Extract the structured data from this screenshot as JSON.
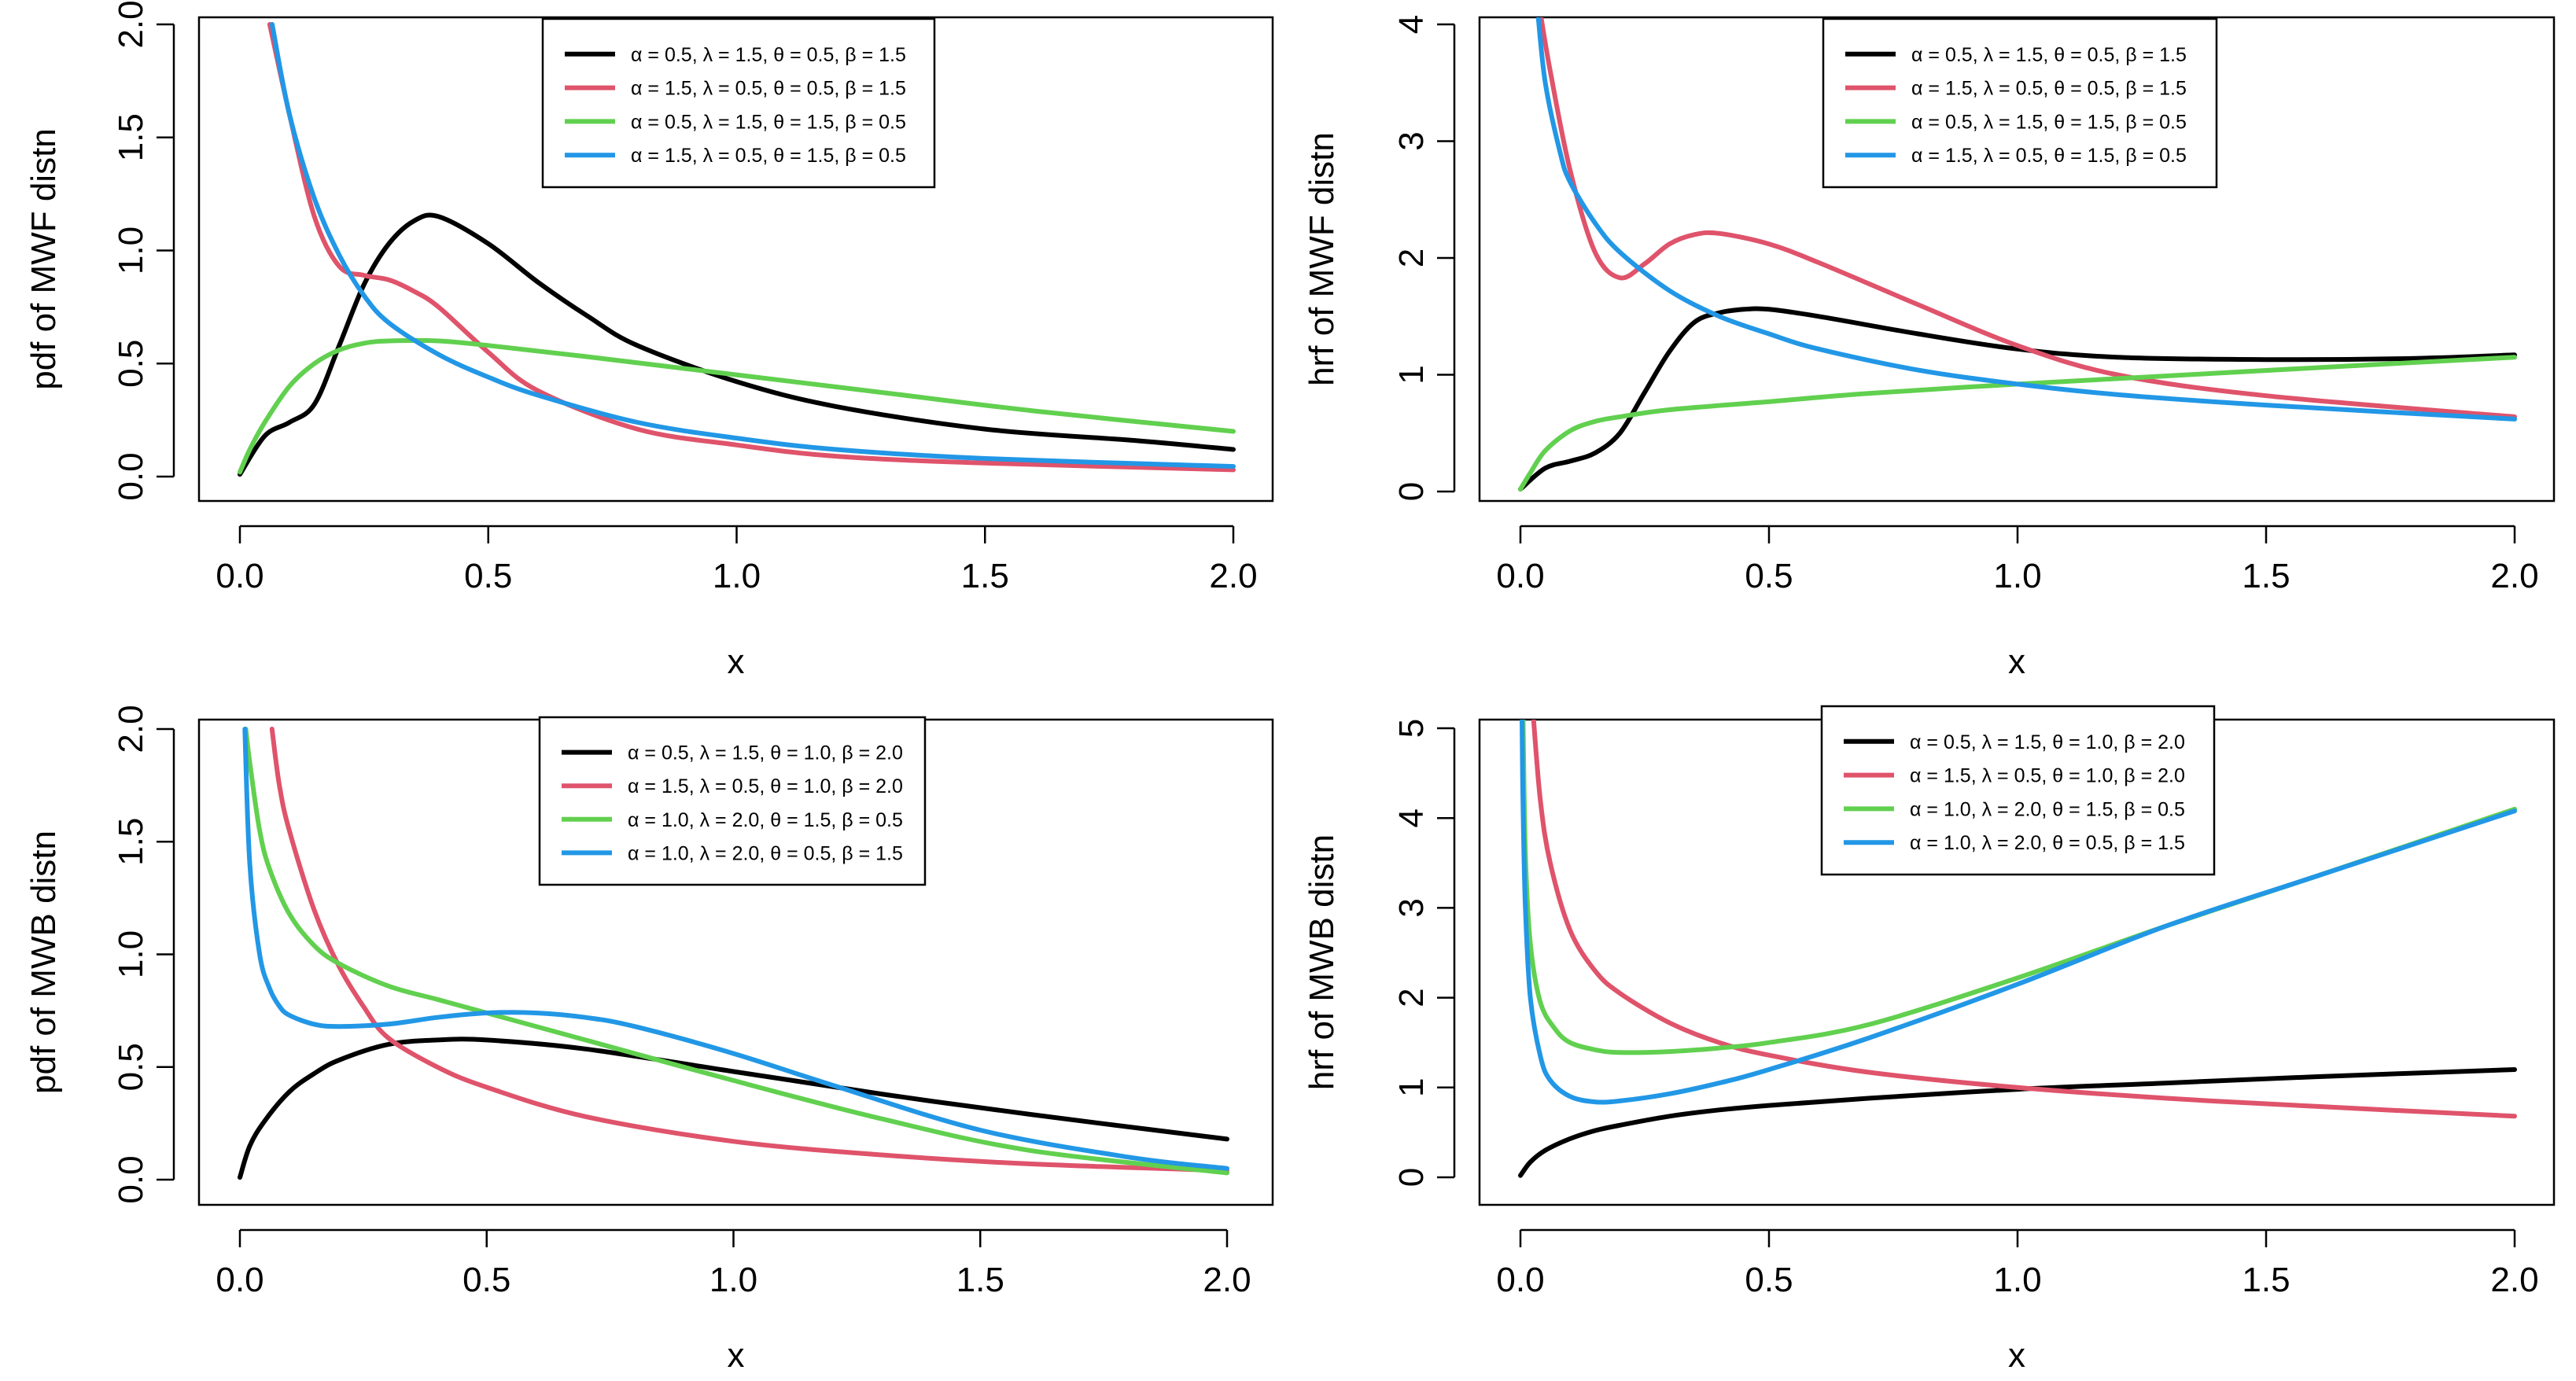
{
  "chart_data": [
    {
      "type": "line",
      "xlabel": "x",
      "ylabel": "pdf of MWF distn",
      "xlim": [
        0,
        2
      ],
      "ylim": [
        0,
        2
      ],
      "xticks": [
        "0.0",
        "0.5",
        "1.0",
        "1.5",
        "2.0"
      ],
      "yticks": [
        "0.0",
        "0.5",
        "1.0",
        "1.5",
        "2.0"
      ],
      "legend_position": "top-center",
      "series": [
        {
          "name": "α = 0.5, λ = 1.5, θ = 0.5, β = 1.5",
          "color": "#000000",
          "x": [
            0,
            0.05,
            0.1,
            0.15,
            0.2,
            0.25,
            0.3,
            0.35,
            0.4,
            0.5,
            0.6,
            0.7,
            0.8,
            1.0,
            1.2,
            1.5,
            1.8,
            2.0
          ],
          "y": [
            0.01,
            0.18,
            0.24,
            0.32,
            0.58,
            0.85,
            1.03,
            1.13,
            1.15,
            1.03,
            0.86,
            0.71,
            0.58,
            0.42,
            0.31,
            0.21,
            0.16,
            0.12
          ]
        },
        {
          "name": "α = 1.5, λ = 0.5, θ = 0.5, β = 1.5",
          "color": "#DF536B",
          "x": [
            0.06,
            0.1,
            0.15,
            0.2,
            0.25,
            0.3,
            0.35,
            0.4,
            0.5,
            0.6,
            0.8,
            1.0,
            1.2,
            1.5,
            2.0
          ],
          "y": [
            2.0,
            1.6,
            1.15,
            0.93,
            0.89,
            0.87,
            0.82,
            0.75,
            0.55,
            0.38,
            0.21,
            0.14,
            0.09,
            0.06,
            0.03
          ]
        },
        {
          "name": "α = 0.5, λ = 1.5, θ = 1.5, β = 0.5",
          "color": "#61D04F",
          "x": [
            0,
            0.02,
            0.05,
            0.1,
            0.15,
            0.2,
            0.25,
            0.3,
            0.4,
            0.5,
            0.7,
            1.0,
            1.3,
            1.6,
            2.0
          ],
          "y": [
            0.02,
            0.12,
            0.24,
            0.4,
            0.5,
            0.56,
            0.59,
            0.6,
            0.6,
            0.58,
            0.53,
            0.45,
            0.37,
            0.29,
            0.2
          ]
        },
        {
          "name": "α = 1.5, λ = 0.5, θ = 1.5, β = 0.5",
          "color": "#2297E6",
          "x": [
            0.065,
            0.1,
            0.15,
            0.2,
            0.25,
            0.3,
            0.4,
            0.5,
            0.6,
            0.8,
            1.0,
            1.2,
            1.5,
            2.0
          ],
          "y": [
            2.0,
            1.6,
            1.23,
            0.98,
            0.8,
            0.68,
            0.54,
            0.44,
            0.36,
            0.24,
            0.17,
            0.12,
            0.08,
            0.045
          ]
        }
      ]
    },
    {
      "type": "line",
      "xlabel": "x",
      "ylabel": "hrf of MWF distn",
      "xlim": [
        0,
        2
      ],
      "ylim": [
        0,
        4
      ],
      "xticks": [
        "0.0",
        "0.5",
        "1.0",
        "1.5",
        "2.0"
      ],
      "yticks": [
        "0",
        "1",
        "2",
        "3",
        "4"
      ],
      "legend_position": "top-center",
      "series": [
        {
          "name": "α = 0.5, λ = 1.5, θ = 0.5, β = 1.5",
          "color": "#000000",
          "x": [
            0,
            0.05,
            0.1,
            0.15,
            0.2,
            0.25,
            0.3,
            0.35,
            0.4,
            0.45,
            0.5,
            0.6,
            0.8,
            1.0,
            1.2,
            1.5,
            1.8,
            2.0
          ],
          "y": [
            0.02,
            0.2,
            0.26,
            0.33,
            0.5,
            0.85,
            1.2,
            1.45,
            1.53,
            1.56,
            1.56,
            1.5,
            1.35,
            1.22,
            1.15,
            1.13,
            1.14,
            1.17
          ]
        },
        {
          "name": "α = 1.5, λ = 0.5, θ = 0.5, β = 1.5",
          "color": "#DF536B",
          "x": [
            0.04,
            0.06,
            0.1,
            0.15,
            0.2,
            0.25,
            0.3,
            0.35,
            0.4,
            0.5,
            0.6,
            0.8,
            1.0,
            1.2,
            1.5,
            2.0
          ],
          "y": [
            4.1,
            3.6,
            2.75,
            2.05,
            1.83,
            1.95,
            2.12,
            2.2,
            2.21,
            2.12,
            1.96,
            1.6,
            1.25,
            1.0,
            0.82,
            0.64
          ]
        },
        {
          "name": "α = 0.5, λ = 1.5, θ = 1.5, β = 0.5",
          "color": "#61D04F",
          "x": [
            0,
            0.02,
            0.05,
            0.1,
            0.15,
            0.2,
            0.3,
            0.5,
            0.7,
            1.0,
            1.3,
            1.6,
            2.0
          ],
          "y": [
            0.02,
            0.16,
            0.35,
            0.52,
            0.6,
            0.64,
            0.7,
            0.77,
            0.84,
            0.92,
            0.99,
            1.06,
            1.15
          ]
        },
        {
          "name": "α = 1.5, λ = 0.5, θ = 1.5, β = 0.5",
          "color": "#2297E6",
          "x": [
            0.035,
            0.05,
            0.08,
            0.1,
            0.15,
            0.2,
            0.3,
            0.4,
            0.5,
            0.6,
            0.8,
            1.0,
            1.2,
            1.5,
            2.0
          ],
          "y": [
            4.1,
            3.5,
            2.9,
            2.65,
            2.3,
            2.05,
            1.72,
            1.5,
            1.35,
            1.22,
            1.04,
            0.92,
            0.83,
            0.74,
            0.62
          ]
        }
      ]
    },
    {
      "type": "line",
      "xlabel": "x",
      "ylabel": "pdf of MWB distn",
      "xlim": [
        0,
        2
      ],
      "ylim": [
        0,
        2
      ],
      "xticks": [
        "0.0",
        "0.5",
        "1.0",
        "1.5",
        "2.0"
      ],
      "yticks": [
        "0.0",
        "0.5",
        "1.0",
        "1.5",
        "2.0"
      ],
      "legend_position": "top-center",
      "series": [
        {
          "name": "α = 0.5, λ = 1.5, θ = 1.0, β = 2.0",
          "color": "#000000",
          "x": [
            0,
            0.02,
            0.05,
            0.1,
            0.15,
            0.2,
            0.3,
            0.4,
            0.5,
            0.7,
            1.0,
            1.3,
            1.6,
            2.0
          ],
          "y": [
            0.01,
            0.15,
            0.26,
            0.39,
            0.47,
            0.53,
            0.6,
            0.62,
            0.62,
            0.58,
            0.48,
            0.38,
            0.29,
            0.18
          ]
        },
        {
          "name": "α = 1.5, λ = 0.5, θ = 1.0, β = 2.0",
          "color": "#DF536B",
          "x": [
            0.065,
            0.08,
            0.1,
            0.15,
            0.2,
            0.25,
            0.3,
            0.4,
            0.5,
            0.7,
            1.0,
            1.3,
            1.6,
            2.0
          ],
          "y": [
            2.0,
            1.75,
            1.55,
            1.2,
            0.95,
            0.77,
            0.63,
            0.5,
            0.41,
            0.28,
            0.17,
            0.11,
            0.07,
            0.04
          ]
        },
        {
          "name": "α = 1.0, λ = 2.0, θ = 1.5, β = 0.5",
          "color": "#61D04F",
          "x": [
            0.012,
            0.02,
            0.04,
            0.06,
            0.1,
            0.15,
            0.2,
            0.3,
            0.4,
            0.5,
            0.7,
            1.0,
            1.3,
            1.6,
            2.0
          ],
          "y": [
            2.0,
            1.85,
            1.55,
            1.38,
            1.18,
            1.04,
            0.96,
            0.86,
            0.8,
            0.74,
            0.62,
            0.44,
            0.27,
            0.13,
            0.03
          ]
        },
        {
          "name": "α = 1.0, λ = 2.0, θ = 0.5, β = 1.5",
          "color": "#2297E6",
          "x": [
            0.01,
            0.02,
            0.04,
            0.06,
            0.08,
            0.1,
            0.15,
            0.2,
            0.3,
            0.4,
            0.5,
            0.6,
            0.7,
            0.8,
            1.0,
            1.2,
            1.5,
            1.8,
            2.0
          ],
          "y": [
            2.0,
            1.4,
            1.0,
            0.85,
            0.77,
            0.73,
            0.69,
            0.68,
            0.69,
            0.72,
            0.74,
            0.74,
            0.72,
            0.68,
            0.56,
            0.42,
            0.22,
            0.1,
            0.05
          ]
        }
      ]
    },
    {
      "type": "line",
      "xlabel": "x",
      "ylabel": "hrf of MWB distn",
      "xlim": [
        0,
        2
      ],
      "ylim": [
        0,
        5
      ],
      "xticks": [
        "0.0",
        "0.5",
        "1.0",
        "1.5",
        "2.0"
      ],
      "yticks": [
        "0",
        "1",
        "2",
        "3",
        "4",
        "5"
      ],
      "legend_position": "top-center",
      "series": [
        {
          "name": "α = 0.5, λ = 1.5, θ = 1.0, β = 2.0",
          "color": "#000000",
          "x": [
            0,
            0.02,
            0.05,
            0.1,
            0.15,
            0.2,
            0.3,
            0.4,
            0.5,
            0.7,
            1.0,
            1.3,
            1.6,
            2.0
          ],
          "y": [
            0.02,
            0.17,
            0.3,
            0.43,
            0.52,
            0.58,
            0.68,
            0.75,
            0.8,
            0.88,
            0.98,
            1.05,
            1.12,
            1.2
          ]
        },
        {
          "name": "α = 1.5, λ = 0.5, θ = 1.0, β = 2.0",
          "color": "#DF536B",
          "x": [
            0.025,
            0.04,
            0.06,
            0.1,
            0.15,
            0.2,
            0.3,
            0.4,
            0.5,
            0.7,
            1.0,
            1.3,
            1.6,
            2.0
          ],
          "y": [
            5.2,
            4.2,
            3.5,
            2.75,
            2.3,
            2.05,
            1.72,
            1.5,
            1.36,
            1.17,
            1.0,
            0.88,
            0.79,
            0.68
          ]
        },
        {
          "name": "α = 1.0, λ = 2.0, θ = 1.5, β = 0.5",
          "color": "#61D04F",
          "x": [
            0.005,
            0.01,
            0.02,
            0.04,
            0.07,
            0.1,
            0.15,
            0.2,
            0.3,
            0.4,
            0.5,
            0.7,
            1.0,
            1.3,
            1.6,
            2.0
          ],
          "y": [
            5.2,
            3.6,
            2.6,
            1.95,
            1.65,
            1.5,
            1.42,
            1.39,
            1.4,
            1.44,
            1.5,
            1.7,
            2.22,
            2.8,
            3.35,
            4.1
          ]
        },
        {
          "name": "α = 1.0, λ = 2.0, θ = 0.5, β = 1.5",
          "color": "#2297E6",
          "x": [
            0.003,
            0.005,
            0.01,
            0.02,
            0.04,
            0.06,
            0.1,
            0.15,
            0.2,
            0.3,
            0.4,
            0.5,
            0.7,
            1.0,
            1.3,
            1.6,
            2.0
          ],
          "y": [
            5.2,
            4.2,
            3.0,
            2.0,
            1.35,
            1.08,
            0.9,
            0.84,
            0.85,
            0.93,
            1.05,
            1.2,
            1.55,
            2.15,
            2.8,
            3.35,
            4.08
          ]
        }
      ]
    }
  ]
}
